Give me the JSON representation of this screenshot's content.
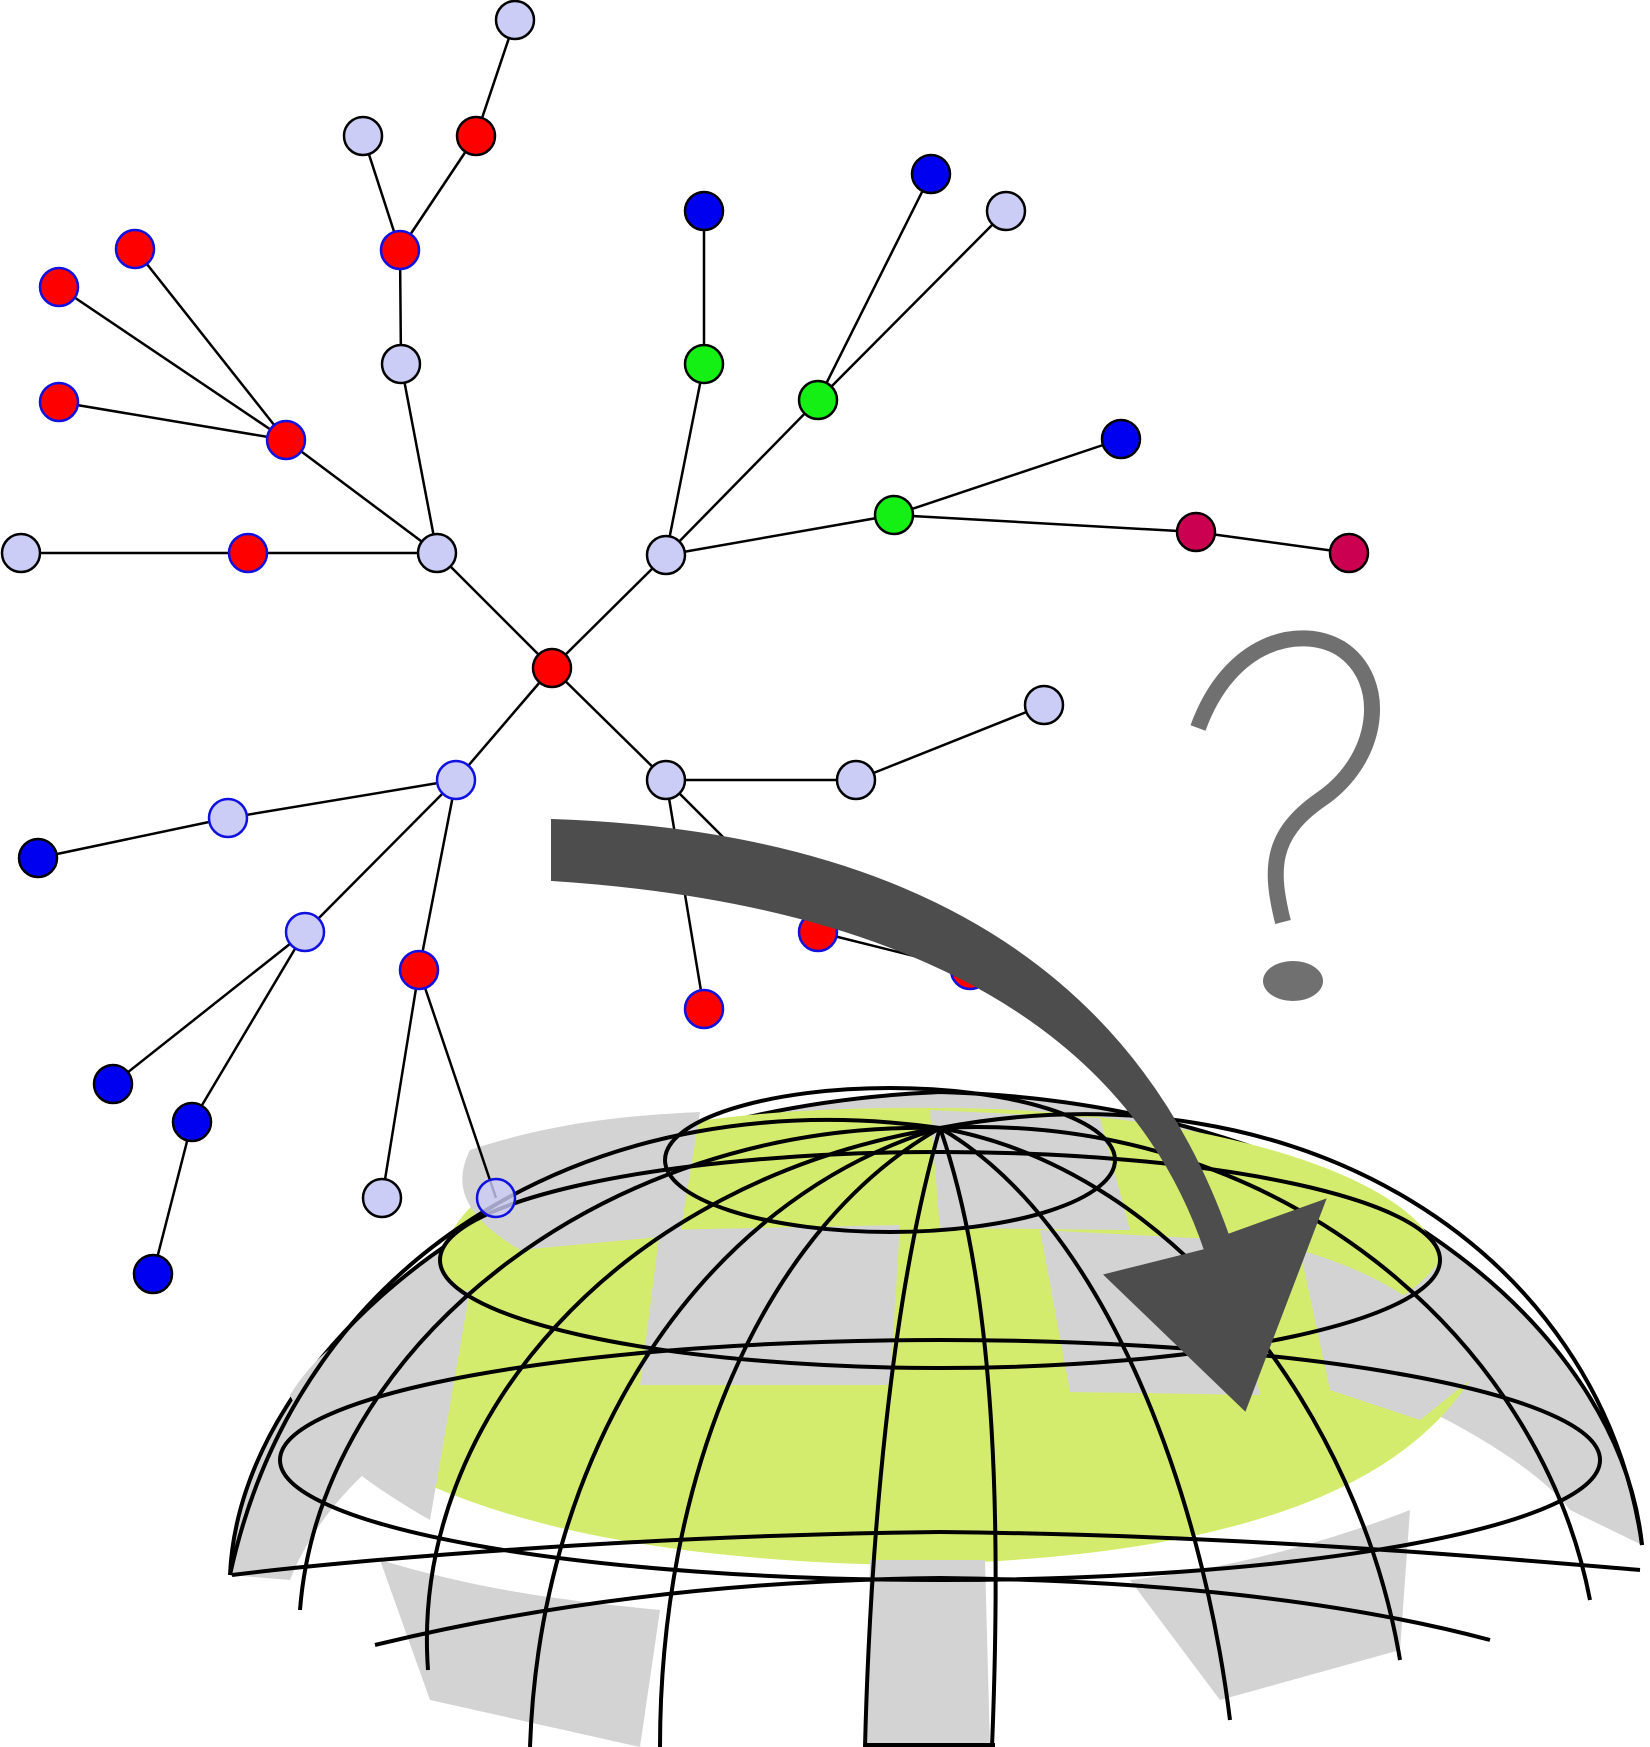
{
  "diagram": {
    "description_symbol": "?",
    "colors": {
      "background": "#ffffff",
      "edge": "#000000",
      "arrow": "#4d4d4d",
      "question_mark": "#707070",
      "dome_green": "#d4ec6e",
      "dome_gray": "#d3d3d3",
      "dome_line": "#000000"
    },
    "node_colors": {
      "red": "#ff0000",
      "lavender": "#cccdf6",
      "blue": "#0000f0",
      "green": "#14f014",
      "crimson": "#cc0050"
    },
    "icons": [
      "tree-graph-icon",
      "curved-arrow-icon",
      "question-mark-icon",
      "dome-grid-icon"
    ]
  }
}
